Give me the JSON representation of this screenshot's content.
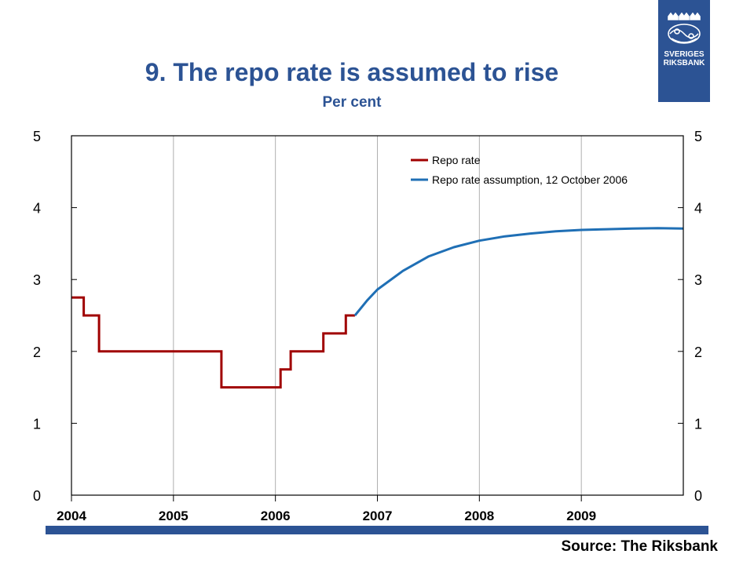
{
  "logo": {
    "icon": "riksbank-crest-icon",
    "line1": "SVERIGES",
    "line2": "RIKSBANK",
    "color": "#2c5394"
  },
  "chart_data": {
    "type": "line",
    "title": "9. The repo rate is assumed to rise",
    "subtitle": "Per cent",
    "xlim": [
      2004.0,
      2010.0
    ],
    "ylim": [
      0,
      5
    ],
    "x_ticks": [
      "2004",
      "2005",
      "2006",
      "2007",
      "2008",
      "2009"
    ],
    "y_ticks_left": [
      "0",
      "1",
      "2",
      "3",
      "4",
      "5"
    ],
    "y_ticks_right": [
      "0",
      "1",
      "2",
      "3",
      "4",
      "5"
    ],
    "grid": "vertical",
    "legend_position": "top-right",
    "series": [
      {
        "name": "Repo rate",
        "color": "#a00000",
        "style": "step",
        "points": [
          [
            2004.0,
            2.75
          ],
          [
            2004.12,
            2.75
          ],
          [
            2004.12,
            2.5
          ],
          [
            2004.27,
            2.5
          ],
          [
            2004.27,
            2.0
          ],
          [
            2005.47,
            2.0
          ],
          [
            2005.47,
            1.5
          ],
          [
            2006.05,
            1.5
          ],
          [
            2006.05,
            1.75
          ],
          [
            2006.15,
            1.75
          ],
          [
            2006.15,
            2.0
          ],
          [
            2006.47,
            2.0
          ],
          [
            2006.47,
            2.25
          ],
          [
            2006.69,
            2.25
          ],
          [
            2006.69,
            2.5
          ],
          [
            2006.78,
            2.5
          ]
        ]
      },
      {
        "name": "Repo rate assumption, 12 October 2006",
        "color": "#1f6fb5",
        "style": "line",
        "points": [
          [
            2006.78,
            2.5
          ],
          [
            2006.9,
            2.71
          ],
          [
            2007.0,
            2.86
          ],
          [
            2007.25,
            3.12
          ],
          [
            2007.5,
            3.32
          ],
          [
            2007.75,
            3.45
          ],
          [
            2008.0,
            3.54
          ],
          [
            2008.25,
            3.6
          ],
          [
            2008.5,
            3.64
          ],
          [
            2008.75,
            3.67
          ],
          [
            2009.0,
            3.69
          ],
          [
            2009.25,
            3.7
          ],
          [
            2009.5,
            3.71
          ],
          [
            2009.75,
            3.715
          ],
          [
            2010.0,
            3.71
          ]
        ]
      }
    ]
  },
  "source": "Source: The Riksbank"
}
